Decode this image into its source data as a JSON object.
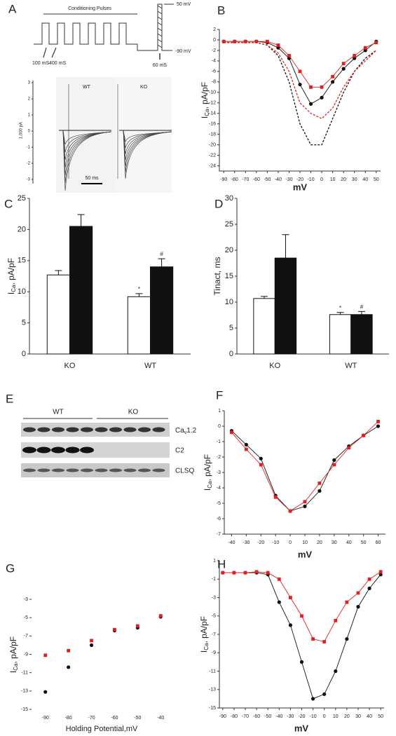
{
  "panel_a": {
    "label": "A",
    "protocol_title": "Conditioning Pulses",
    "v_top": "50 mV",
    "v_hold": "-90 mV",
    "t_pulse": "100 mS",
    "t_gap": "400 mS",
    "t_test": "60 mS",
    "trace_wt": "WT",
    "trace_ko": "KO",
    "trace_ylabel": "1,000 pA",
    "trace_yticks": [
      "3",
      "2",
      "1",
      "0",
      "-1",
      "-2",
      "-3"
    ],
    "trace_scale": "50 ms"
  },
  "panel_e": {
    "label": "E",
    "group_wt": "WT",
    "group_ko": "KO",
    "band_cav": {
      "text": "Ca",
      "sub": "v",
      "suffix": "1.2"
    },
    "band_c2": "C2",
    "band_clsq": "CLSQ"
  },
  "chart_data": [
    {
      "type": "line",
      "panel": "B",
      "xlabel": "mV",
      "ylabel": {
        "text": "I",
        "sub": "Ca",
        "suffix": ", pA/pF"
      },
      "x": [
        -90,
        -80,
        -70,
        -60,
        -50,
        -40,
        -30,
        -20,
        -10,
        0,
        10,
        20,
        30,
        40,
        50
      ],
      "xlim": [
        -94,
        54
      ],
      "xticks": [
        -90,
        -80,
        -70,
        -60,
        -50,
        -40,
        -30,
        -20,
        -10,
        0,
        10,
        20,
        30,
        40,
        50
      ],
      "ylim": [
        -25,
        2
      ],
      "yticks": [
        2,
        0,
        -2,
        -4,
        -6,
        -8,
        -10,
        -12,
        -14,
        -16,
        -18,
        -20,
        -22,
        -24
      ],
      "series": [
        {
          "color": "#111111",
          "marker": "circle",
          "values": [
            -0.3,
            -0.3,
            -0.3,
            -0.3,
            -0.5,
            -1.5,
            -3.5,
            -8.5,
            -12.2,
            -11,
            -8,
            -5.5,
            -3.5,
            -2,
            -0.3
          ]
        },
        {
          "color": "#e02020",
          "marker": "square",
          "values": [
            -0.3,
            -0.3,
            -0.3,
            -0.3,
            -0.3,
            -1,
            -3,
            -6,
            -9,
            -9,
            -7,
            -4.5,
            -3,
            -1.5,
            -0.5
          ]
        },
        {
          "color": "#111111",
          "dashed": true,
          "values": [
            -0.5,
            -0.5,
            -0.5,
            -0.5,
            -1,
            -3,
            -8,
            -16,
            -20,
            -20,
            -15,
            -10,
            -6,
            -3.5,
            -2
          ]
        },
        {
          "color": "#e02020",
          "dashed": true,
          "values": [
            -0.5,
            -0.5,
            -0.5,
            -0.5,
            -1,
            -2.5,
            -6,
            -12,
            -14,
            -15,
            -13,
            -9,
            -6,
            -4,
            -2
          ]
        }
      ]
    },
    {
      "type": "bar",
      "panel": "C",
      "ylabel": {
        "text": "I",
        "sub": "Ca",
        "suffix": ", pA/pF"
      },
      "categories": [
        "KO",
        "WT"
      ],
      "ylim": [
        0,
        25
      ],
      "yticks": [
        0,
        5,
        10,
        15,
        20,
        25
      ],
      "series": [
        {
          "color": "#ffffff",
          "values": [
            12.7,
            9.2
          ],
          "errors": [
            0.7,
            0.5
          ],
          "annotations": [
            null,
            "*"
          ]
        },
        {
          "color": "#111111",
          "values": [
            20.5,
            14.0
          ],
          "errors": [
            1.9,
            1.3
          ],
          "annotations": [
            null,
            "#"
          ]
        }
      ]
    },
    {
      "type": "bar",
      "panel": "D",
      "ylabel": "Tinact, ms",
      "categories": [
        "KO",
        "WT"
      ],
      "ylim": [
        0,
        30
      ],
      "yticks": [
        0,
        5,
        10,
        15,
        20,
        25,
        30
      ],
      "series": [
        {
          "color": "#ffffff",
          "values": [
            10.7,
            7.6
          ],
          "errors": [
            0.4,
            0.4
          ],
          "annotations": [
            null,
            "*"
          ]
        },
        {
          "color": "#111111",
          "values": [
            18.5,
            7.6
          ],
          "errors": [
            4.5,
            0.6
          ],
          "annotations": [
            null,
            "#"
          ]
        }
      ]
    },
    {
      "type": "line",
      "panel": "F",
      "xlabel": "mV",
      "ylabel": {
        "text": "I",
        "sub": "Ca",
        "suffix": ", pA/pF"
      },
      "x": [
        -40,
        -30,
        -20,
        -10,
        0,
        10,
        20,
        30,
        40,
        50,
        60
      ],
      "xlim": [
        -45,
        65
      ],
      "xticks": [
        -40,
        -30,
        -20,
        -10,
        0,
        10,
        20,
        30,
        40,
        50,
        60
      ],
      "ylim": [
        -7,
        1
      ],
      "yticks": [
        1,
        0,
        -1,
        -2,
        -3,
        -4,
        -5,
        -6,
        -7
      ],
      "series": [
        {
          "color": "#111111",
          "marker": "circle",
          "values": [
            -0.3,
            -1.2,
            -2.1,
            -4.5,
            -5.5,
            -5.2,
            -4.2,
            -2.2,
            -1.3,
            -0.6,
            0
          ]
        },
        {
          "color": "#e02020",
          "marker": "square",
          "values": [
            -0.4,
            -1.5,
            -2.5,
            -4.6,
            -5.5,
            -4.9,
            -3.7,
            -2.5,
            -1.4,
            -0.6,
            0.3
          ]
        }
      ]
    },
    {
      "type": "scatter",
      "panel": "G",
      "xlabel": "Holding Potential,mV",
      "ylabel": {
        "text": "I",
        "sub": "Ca",
        "suffix": ", pA/pF"
      },
      "x": [
        -90,
        -80,
        -70,
        -60,
        -50,
        -40
      ],
      "xlim": [
        -96,
        -34
      ],
      "xticks": [
        -90,
        -80,
        -70,
        -60,
        -50,
        -40
      ],
      "ylim": [
        -15,
        -3
      ],
      "yticks": [
        -3,
        -5,
        -7,
        -9,
        -11,
        -13,
        -15
      ],
      "series": [
        {
          "color": "#111111",
          "marker": "circle",
          "values": [
            -13.1,
            -10.4,
            -8.0,
            -6.4,
            -6.1,
            -4.9
          ]
        },
        {
          "color": "#e02020",
          "marker": "square",
          "values": [
            -9.1,
            -8.6,
            -7.5,
            -6.3,
            -5.9,
            -4.8
          ]
        }
      ]
    },
    {
      "type": "line",
      "panel": "H",
      "xlabel": "mV",
      "ylabel": {
        "text": "I",
        "sub": "Ca",
        "suffix": ", pA/pF"
      },
      "x": [
        -90,
        -80,
        -70,
        -60,
        -50,
        -40,
        -30,
        -20,
        -10,
        0,
        10,
        20,
        30,
        40,
        50
      ],
      "xlim": [
        -93,
        53
      ],
      "xticks": [
        -90,
        -80,
        -70,
        -60,
        -50,
        -40,
        -30,
        -20,
        -10,
        0,
        10,
        20,
        30,
        40,
        50
      ],
      "ylim": [
        -15,
        1
      ],
      "yticks": [
        1,
        -1,
        -3,
        -5,
        -7,
        -9,
        -11,
        -13,
        -15
      ],
      "series": [
        {
          "color": "#111111",
          "marker": "circle",
          "values": [
            -0.3,
            -0.3,
            -0.3,
            -0.3,
            -0.5,
            -3.5,
            -6,
            -10,
            -14,
            -13.5,
            -11,
            -7.5,
            -4,
            -2,
            -0.5
          ]
        },
        {
          "color": "#e02020",
          "marker": "square",
          "values": [
            -0.3,
            -0.3,
            -0.3,
            -0.2,
            -0.3,
            -1,
            -3,
            -5,
            -7.5,
            -7.8,
            -5.5,
            -3.5,
            -2.5,
            -1,
            -0.2
          ]
        }
      ]
    }
  ]
}
